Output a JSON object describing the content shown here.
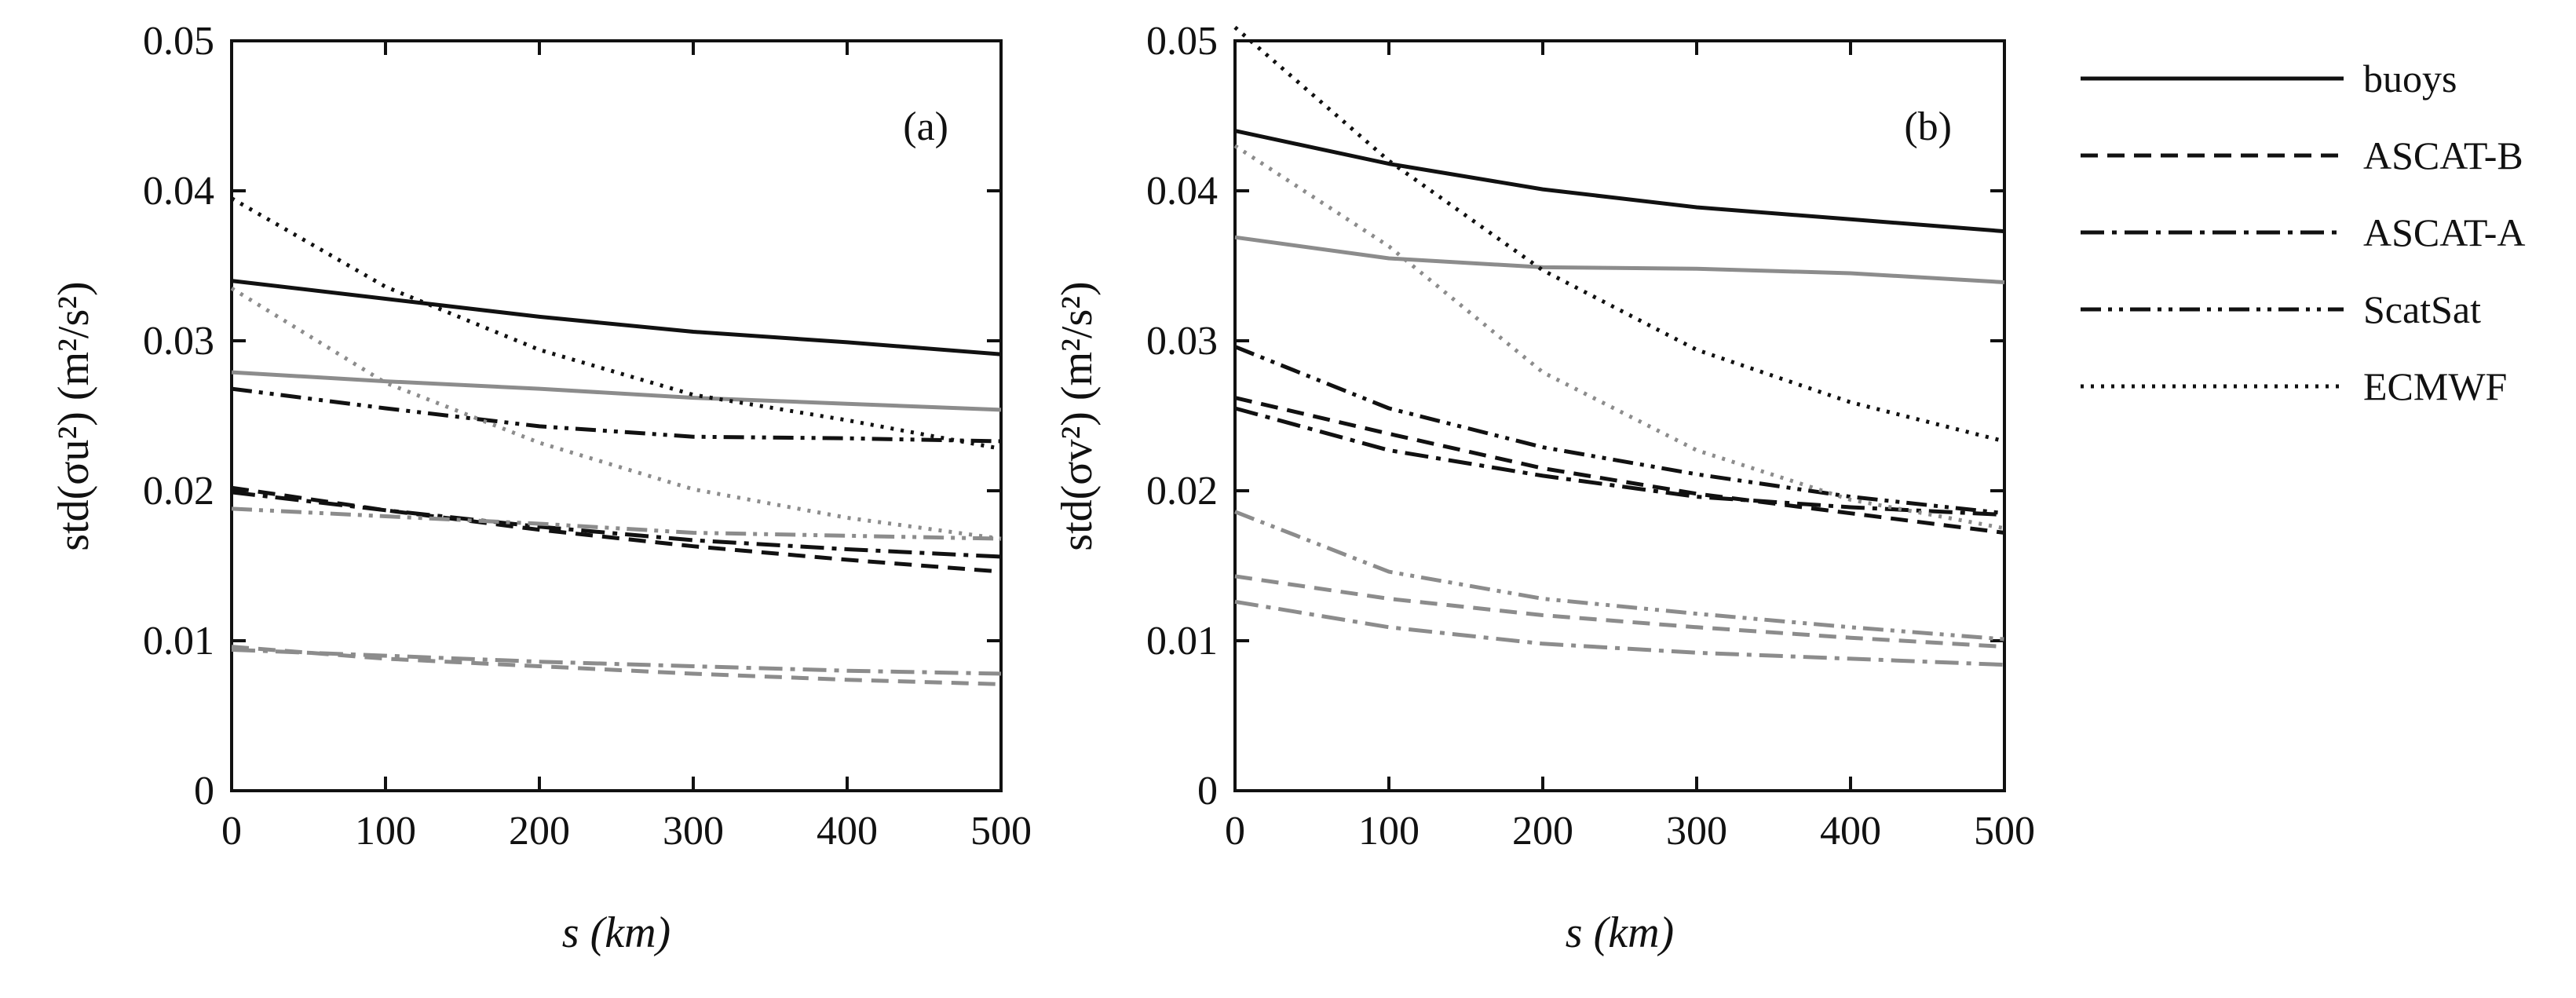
{
  "chart_data": [
    {
      "type": "line",
      "panel": "(a)",
      "xlabel": "s  (km)",
      "ylabel": "std(σu²)  (m²/s²)",
      "xlim": [
        0,
        500
      ],
      "ylim": [
        0,
        0.05
      ],
      "xticks": [
        "0",
        "100",
        "200",
        "300",
        "400",
        "500"
      ],
      "yticks": [
        "0",
        "0.01",
        "0.02",
        "0.03",
        "0.04",
        "0.05"
      ],
      "x": [
        0,
        100,
        200,
        300,
        400,
        500
      ],
      "series": [
        {
          "name": "buoys",
          "tone": "black",
          "values": [
            0.034,
            0.0328,
            0.0316,
            0.0306,
            0.0299,
            0.0291
          ]
        },
        {
          "name": "buoys",
          "tone": "gray",
          "values": [
            0.0279,
            0.0273,
            0.0268,
            0.0262,
            0.0258,
            0.0254
          ]
        },
        {
          "name": "ASCAT-B",
          "tone": "black",
          "values": [
            0.0202,
            0.0187,
            0.0174,
            0.0163,
            0.0154,
            0.0146
          ]
        },
        {
          "name": "ASCAT-B",
          "tone": "gray",
          "values": [
            0.0096,
            0.0088,
            0.0083,
            0.0078,
            0.0074,
            0.0071
          ]
        },
        {
          "name": "ASCAT-A",
          "tone": "black",
          "values": [
            0.0199,
            0.0187,
            0.0176,
            0.0167,
            0.0161,
            0.0156
          ]
        },
        {
          "name": "ASCAT-A",
          "tone": "gray",
          "values": [
            0.0094,
            0.009,
            0.0086,
            0.0083,
            0.008,
            0.0078
          ]
        },
        {
          "name": "ScatSat",
          "tone": "black",
          "values": [
            0.0268,
            0.0255,
            0.0243,
            0.0236,
            0.0235,
            0.0233
          ]
        },
        {
          "name": "ScatSat",
          "tone": "gray",
          "values": [
            0.0188,
            0.0183,
            0.0178,
            0.0172,
            0.017,
            0.0168
          ]
        },
        {
          "name": "ECMWF",
          "tone": "black",
          "values": [
            0.0395,
            0.0336,
            0.0294,
            0.0264,
            0.0247,
            0.0228
          ]
        },
        {
          "name": "ECMWF",
          "tone": "gray",
          "values": [
            0.0335,
            0.0272,
            0.0232,
            0.0201,
            0.0182,
            0.0168
          ]
        }
      ]
    },
    {
      "type": "line",
      "panel": "(b)",
      "xlabel": "s  (km)",
      "ylabel": "std(σv²)  (m²/s²)",
      "xlim": [
        0,
        500
      ],
      "ylim": [
        0,
        0.05
      ],
      "xticks": [
        "0",
        "100",
        "200",
        "300",
        "400",
        "500"
      ],
      "yticks": [
        "0",
        "0.01",
        "0.02",
        "0.03",
        "0.04",
        "0.05"
      ],
      "x": [
        0,
        100,
        200,
        300,
        400,
        500
      ],
      "series": [
        {
          "name": "buoys",
          "tone": "black",
          "values": [
            0.044,
            0.0418,
            0.0401,
            0.0389,
            0.0381,
            0.0373
          ]
        },
        {
          "name": "buoys",
          "tone": "gray",
          "values": [
            0.0369,
            0.0355,
            0.0349,
            0.0348,
            0.0345,
            0.0339
          ]
        },
        {
          "name": "ASCAT-B",
          "tone": "black",
          "values": [
            0.0262,
            0.0238,
            0.0215,
            0.0198,
            0.0185,
            0.0172
          ]
        },
        {
          "name": "ASCAT-B",
          "tone": "gray",
          "values": [
            0.0143,
            0.0128,
            0.0117,
            0.0109,
            0.0102,
            0.0096
          ]
        },
        {
          "name": "ASCAT-A",
          "tone": "black",
          "values": [
            0.0255,
            0.0227,
            0.021,
            0.0196,
            0.0189,
            0.0184
          ]
        },
        {
          "name": "ASCAT-A",
          "tone": "gray",
          "values": [
            0.0126,
            0.0109,
            0.0098,
            0.0092,
            0.0088,
            0.0084
          ]
        },
        {
          "name": "ScatSat",
          "tone": "black",
          "values": [
            0.0296,
            0.0255,
            0.0229,
            0.0211,
            0.0196,
            0.0185
          ]
        },
        {
          "name": "ScatSat",
          "tone": "gray",
          "values": [
            0.0186,
            0.0146,
            0.0128,
            0.0118,
            0.0109,
            0.0101
          ]
        },
        {
          "name": "ECMWF",
          "tone": "black",
          "values": [
            0.0509,
            0.042,
            0.0347,
            0.0294,
            0.0259,
            0.0233
          ]
        },
        {
          "name": "ECMWF",
          "tone": "gray",
          "values": [
            0.043,
            0.0363,
            0.0279,
            0.0227,
            0.0194,
            0.0175
          ]
        }
      ]
    }
  ],
  "legend": [
    {
      "label": "buoys",
      "style": "solid"
    },
    {
      "label": "ASCAT-B",
      "style": "dashed"
    },
    {
      "label": "ASCAT-A",
      "style": "dashdot"
    },
    {
      "label": "ScatSat",
      "style": "dashdotdot"
    },
    {
      "label": "ECMWF",
      "style": "dotted"
    }
  ],
  "colors": {
    "black": "#111111",
    "gray": "#8c8c8c"
  }
}
